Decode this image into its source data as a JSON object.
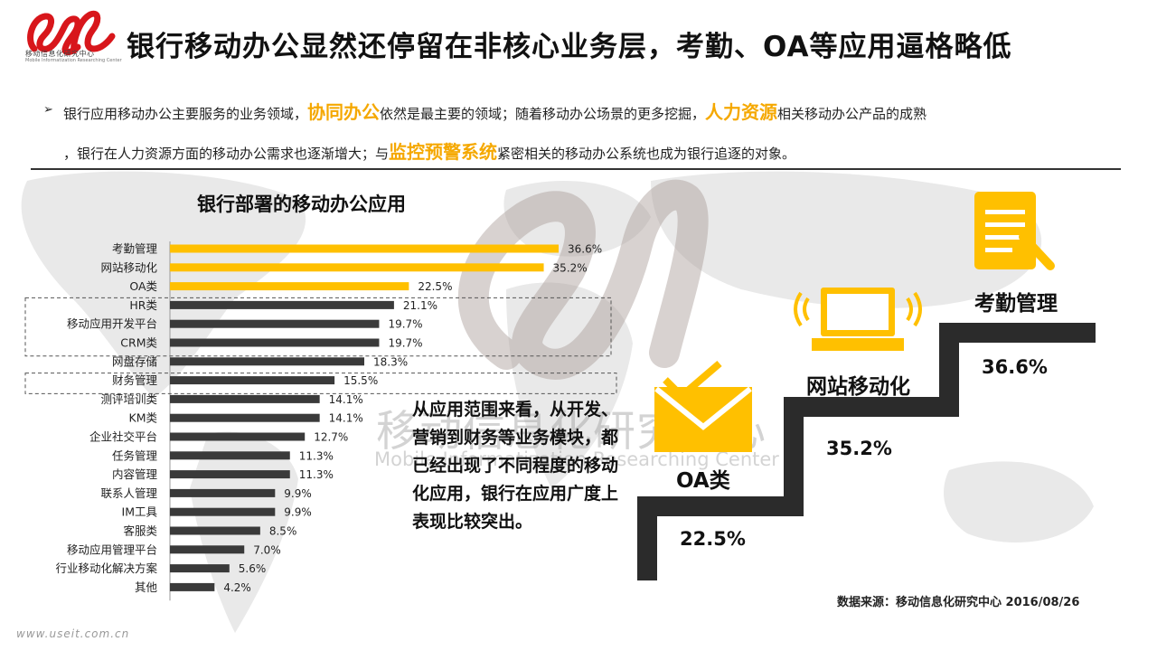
{
  "header": {
    "title": "银行移动办公显然还停留在非核心业务层，考勤、OA等应用逼格略低",
    "logo_org": "移动信息化研究中心",
    "logo_org_en": "Mobile Informatization Researching Center"
  },
  "intro": {
    "bullet": "➢",
    "line1_a": "银行应用移动办公主要服务的业务领域，",
    "line1_hl1": "协同办公",
    "line1_b": "依然是最主要的领域；随着移动办公场景的更多挖掘，",
    "line1_hl2": "人力资源",
    "line1_c": "相关移动办公产品的成熟",
    "line2_a": "，银行在人力资源方面的移动办公需求也逐渐增大；与",
    "line2_hl": "监控预警系统",
    "line2_b": "紧密相关的移动办公系统也成为银行追逐的对象。"
  },
  "colors": {
    "highlight": "#F5A800",
    "bar_gold": "#FFC000",
    "bar_dark": "#3a3a3a",
    "step": "#2b2b2b"
  },
  "chart_data": {
    "type": "bar",
    "orientation": "horizontal",
    "title": "银行部署的移动办公应用",
    "categories": [
      "考勤管理",
      "网站移动化",
      "OA类",
      "HR类",
      "移动应用开发平台",
      "CRM类",
      "网盘存储",
      "财务管理",
      "测评培训类",
      "KM类",
      "企业社交平台",
      "任务管理",
      "内容管理",
      "联系人管理",
      "IM工具",
      "客服类",
      "移动应用管理平台",
      "行业移动化解决方案",
      "其他"
    ],
    "values": [
      36.6,
      35.2,
      22.5,
      21.1,
      19.7,
      19.7,
      18.3,
      15.5,
      14.1,
      14.1,
      12.7,
      11.3,
      11.3,
      9.9,
      9.9,
      8.5,
      7.0,
      5.6,
      4.2
    ],
    "value_labels": [
      "36.6%",
      "35.2%",
      "22.5%",
      "21.1%",
      "19.7%",
      "19.7%",
      "18.3%",
      "15.5%",
      "14.1%",
      "14.1%",
      "12.7%",
      "11.3%",
      "11.3%",
      "9.9%",
      "9.9%",
      "8.5%",
      "7.0%",
      "5.6%",
      "4.2%"
    ],
    "highlighted_top": 3,
    "boxed_groups": [
      [
        3,
        5
      ],
      [
        7,
        7
      ]
    ],
    "xlim": [
      0,
      40
    ]
  },
  "comment": {
    "text": "从应用范围来看，从开发、营销到财务等业务模块，都已经出现了不同程度的移动化应用，银行在应用广度上表现比较突出。"
  },
  "watermark": {
    "cn": "移动信息化研究中心",
    "en": "Mobile Informatization Researching Center"
  },
  "steps": [
    {
      "label": "OA类",
      "value": "22.5%",
      "icon": "envelope-check-icon"
    },
    {
      "label": "网站移动化",
      "value": "35.2%",
      "icon": "laptop-wifi-icon"
    },
    {
      "label": "考勤管理",
      "value": "36.6%",
      "icon": "document-pen-icon"
    }
  ],
  "footer": {
    "source": "数据来源：移动信息化研究中心 2016/08/26",
    "url": "www.useit.com.cn"
  }
}
